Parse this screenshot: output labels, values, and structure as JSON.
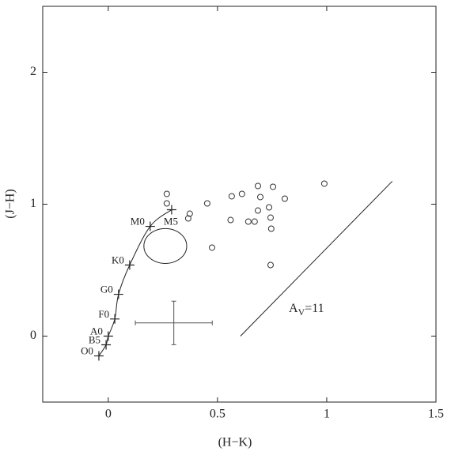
{
  "chart_data": {
    "type": "scatter",
    "x_label": "(H−K)",
    "y_label": "(J−H)",
    "xlim": [
      -0.3,
      1.5
    ],
    "ylim": [
      -0.5,
      2.5
    ],
    "xticks": [
      0,
      0.5,
      1,
      1.5
    ],
    "yticks": [
      0,
      1,
      2
    ],
    "series": [
      {
        "color": "#333333",
        "x": [
          0.268,
          0.268,
          0.373,
          0.366,
          0.453,
          0.475,
          0.565,
          0.612,
          0.56,
          0.641,
          0.67,
          0.685,
          0.696,
          0.685,
          0.754,
          0.736,
          0.743,
          0.746,
          0.808,
          0.743,
          0.989
        ],
        "values": [
          1.078,
          1.006,
          0.928,
          0.892,
          1.006,
          0.671,
          1.06,
          1.078,
          0.88,
          0.868,
          0.868,
          1.138,
          1.054,
          0.952,
          1.132,
          0.976,
          0.898,
          0.814,
          1.042,
          0.539,
          1.156
        ]
      }
    ],
    "main_sequence": {
      "labels": [
        "O0",
        "B5",
        "A0",
        "F0",
        "G0",
        "K0",
        "M0",
        "M5"
      ],
      "x": [
        -0.043,
        -0.01,
        0.0,
        0.03,
        0.047,
        0.098,
        0.192,
        0.29
      ],
      "values": [
        -0.15,
        -0.066,
        0.0,
        0.13,
        0.317,
        0.539,
        0.832,
        0.958
      ]
    },
    "ellipse": {
      "x": 0.261,
      "y": 0.683,
      "rx": 0.098,
      "ry": 0.132
    },
    "errorbar": {
      "x": 0.3,
      "y": 0.1,
      "xerr": 0.176,
      "yerr": 0.165
    },
    "reddening": {
      "x": [
        0.605,
        1.3
      ],
      "values": [
        0,
        1.174
      ],
      "label": {
        "main": "A",
        "sub": "V",
        "rest": "=11"
      }
    }
  }
}
